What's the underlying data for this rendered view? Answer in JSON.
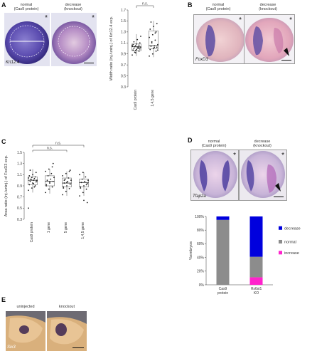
{
  "panel_A": {
    "letter": "A",
    "label_normal": "normal",
    "label_normal_sub": "(Cas9 protein)",
    "label_decrease": "decrease",
    "label_decrease_sub": "(knockout)",
    "gene": "Krt12.4",
    "asterisk": "*"
  },
  "panel_B": {
    "letter": "B",
    "label_normal": "normal",
    "label_normal_sub": "(Cas9 protein)",
    "label_decrease": "decrease",
    "label_decrease_sub": "(knockout)",
    "gene": "FoxD3",
    "asterisk": "*"
  },
  "panel_C": {
    "letter": "C"
  },
  "panel_D": {
    "letter": "D",
    "label_normal": "normal",
    "label_normal_sub": "(Cas9 protein)",
    "label_decrease": "decrease",
    "label_decrease_sub": "(knockout)",
    "gene": "Tfap2a",
    "asterisk": "*"
  },
  "panel_E": {
    "letter": "E",
    "label_uninjected": "uninjected",
    "label_knockout": "knockout",
    "gene": "Six3"
  },
  "chart_data": [
    {
      "type": "scatter",
      "id": "A-width-ratio",
      "ylabel": "Width ratio (inj./uninj.) of Krt12.4 exp.",
      "ylim": [
        0.3,
        1.7
      ],
      "yticks": [
        "0.3",
        "0.5",
        "0.7",
        "0.9",
        "1.1",
        "1.3",
        "1.5",
        "1.7"
      ],
      "categories": [
        "Cas9 protein",
        "1,4,5 gene"
      ],
      "significance": "n.s.",
      "groups": [
        {
          "name": "Cas9 protein",
          "median": 1.03,
          "q1": 0.96,
          "q3": 1.08,
          "lo": 0.86,
          "hi": 1.26,
          "values": [
            0.88,
            0.92,
            0.95,
            0.97,
            0.98,
            0.99,
            1.0,
            1.01,
            1.02,
            1.03,
            1.03,
            1.04,
            1.05,
            1.06,
            1.07,
            1.08,
            1.1,
            1.12,
            1.16,
            1.22,
            0.93,
            1.0,
            1.05,
            0.96,
            1.02
          ]
        },
        {
          "name": "1,4,5 gene",
          "median": 1.05,
          "q1": 0.99,
          "q3": 1.32,
          "lo": 0.84,
          "hi": 1.5,
          "values": [
            0.86,
            0.9,
            0.95,
            0.98,
            1.0,
            1.02,
            1.04,
            1.05,
            1.07,
            1.1,
            1.15,
            1.2,
            1.25,
            1.3,
            1.35,
            1.4,
            1.45,
            1.48,
            1.02,
            0.97,
            1.12,
            1.28
          ]
        }
      ]
    },
    {
      "type": "scatter",
      "id": "C-area-ratio",
      "ylabel": "Area ratio (inj./uninj.) of FoxD3 exp.",
      "ylim": [
        0.3,
        1.5
      ],
      "yticks": [
        "0.3",
        "0.5",
        "0.7",
        "0.9",
        "1.1",
        "1.3",
        "1.5"
      ],
      "categories": [
        "Cas9 protein",
        "1 gene",
        "5 gene",
        "1,4,5 gene"
      ],
      "significance_outer": "n.s.",
      "significance_inner": "n.s.",
      "groups": [
        {
          "name": "Cas9 protein",
          "median": 1.0,
          "q1": 0.92,
          "q3": 1.06,
          "lo": 0.78,
          "hi": 1.2,
          "values": [
            0.82,
            0.86,
            0.9,
            0.92,
            0.95,
            0.97,
            0.98,
            1.0,
            1.0,
            1.02,
            1.03,
            1.04,
            1.05,
            1.06,
            1.08,
            1.1,
            1.14,
            1.18,
            0.94,
            0.99,
            1.01,
            0.88,
            0.5
          ]
        },
        {
          "name": "1 gene",
          "median": 0.98,
          "q1": 0.9,
          "q3": 1.08,
          "lo": 0.76,
          "hi": 1.2,
          "values": [
            0.78,
            0.84,
            0.88,
            0.92,
            0.95,
            0.98,
            1.0,
            1.02,
            1.05,
            1.08,
            1.12,
            1.16,
            1.2,
            1.24,
            0.9,
            0.97,
            1.3
          ]
        },
        {
          "name": "5 gene",
          "median": 0.95,
          "q1": 0.88,
          "q3": 1.04,
          "lo": 0.72,
          "hi": 1.16,
          "values": [
            0.74,
            0.8,
            0.85,
            0.88,
            0.9,
            0.93,
            0.95,
            0.98,
            1.0,
            1.02,
            1.04,
            1.08,
            1.12,
            1.16,
            0.86,
            0.96,
            1.18,
            1.0
          ]
        },
        {
          "name": "1,4,5 gene",
          "median": 0.96,
          "q1": 0.88,
          "q3": 1.02,
          "lo": 0.72,
          "hi": 1.14,
          "values": [
            0.72,
            0.78,
            0.84,
            0.88,
            0.9,
            0.94,
            0.96,
            0.98,
            1.0,
            1.02,
            1.06,
            1.1,
            1.14,
            0.92,
            0.86,
            0.64,
            0.6
          ]
        }
      ]
    },
    {
      "type": "bar",
      "id": "D-stacked",
      "ylabel": "%embryos",
      "yticks": [
        "0%",
        "20%",
        "40%",
        "60%",
        "80%",
        "100%"
      ],
      "categories": [
        "Cas9 protein",
        "Hs6st1 KO"
      ],
      "series": [
        {
          "name": "increase",
          "color": "#ff22cc",
          "values": [
            0,
            11
          ]
        },
        {
          "name": "normal",
          "color": "#8c8c8c",
          "values": [
            95,
            30
          ]
        },
        {
          "name": "decrease",
          "color": "#0000dd",
          "values": [
            5,
            59
          ]
        }
      ],
      "legend": [
        "decrease",
        "normal",
        "increase"
      ]
    }
  ]
}
